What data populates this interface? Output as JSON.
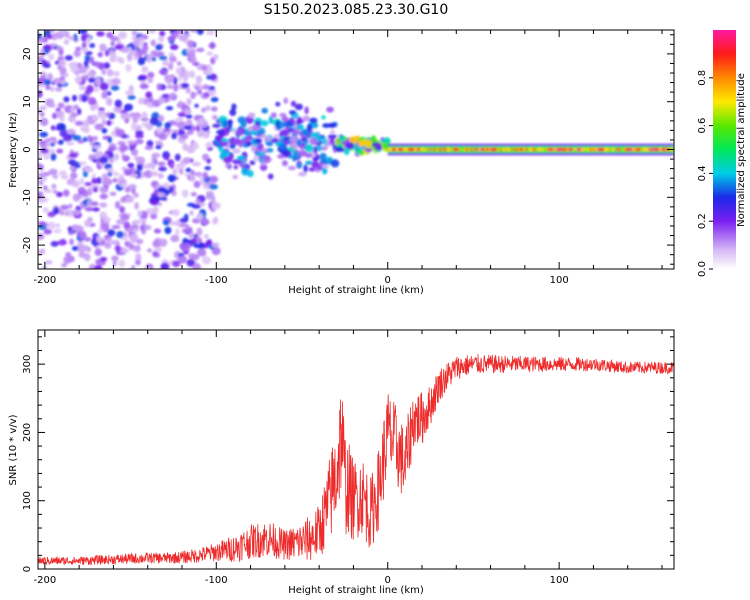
{
  "title": "S150.2023.085.23.30.G10",
  "chart_data": [
    {
      "type": "heatmap",
      "xlabel": "Height of straight line (km)",
      "ylabel": "Frequency (Hz)",
      "xlim": [
        -204,
        167
      ],
      "ylim": [
        -25,
        25
      ],
      "x_ticks": [
        -200,
        -100,
        0,
        100
      ],
      "x_tick_labels": [
        "-200",
        "-100",
        "0",
        "100"
      ],
      "y_ticks": [
        -20,
        -10,
        0,
        10,
        20
      ],
      "y_tick_labels": [
        "-20",
        "-10",
        "0",
        "10",
        "20"
      ],
      "grid": false,
      "colorbar": {
        "label": "Normalized spectral amplitude",
        "range": [
          0,
          1
        ],
        "ticks": [
          0.0,
          0.2,
          0.4,
          0.6,
          0.8
        ],
        "tick_labels": [
          "0.0",
          "0.2",
          "0.4",
          "0.6",
          "0.8"
        ],
        "colormap": "rainbow-white-to-magenta"
      },
      "segments": [
        {
          "x_range": [
            -204,
            -100
          ],
          "freq_spread_hz": 25,
          "typical_amplitude": 0.2
        },
        {
          "x_range": [
            -100,
            -30
          ],
          "freq_center_hz": 2,
          "freq_spread_hz": 10,
          "typical_amplitude": 0.25
        },
        {
          "x_range": [
            -30,
            0
          ],
          "freq_center_hz": 1,
          "freq_spread_hz": 2,
          "typical_amplitude": 0.45
        },
        {
          "x_range": [
            0,
            167
          ],
          "freq_center_hz": 0,
          "freq_spread_hz": 0.8,
          "typical_amplitude": 0.95
        }
      ]
    },
    {
      "type": "line",
      "xlabel": "Height of straight line (km)",
      "ylabel": "SNR (10 * v/v)",
      "xlim": [
        -204,
        167
      ],
      "ylim": [
        0,
        350
      ],
      "x_ticks": [
        -200,
        -100,
        0,
        100
      ],
      "x_tick_labels": [
        "-200",
        "-100",
        "0",
        "100"
      ],
      "y_ticks": [
        0,
        100,
        200,
        300
      ],
      "y_tick_labels": [
        "0",
        "100",
        "200",
        "300"
      ],
      "grid": false,
      "series": [
        {
          "color": "#ee2a2a",
          "x": [
            -204,
            -190,
            -180,
            -170,
            -160,
            -150,
            -140,
            -130,
            -120,
            -110,
            -100,
            -90,
            -80,
            -70,
            -60,
            -50,
            -45,
            -40,
            -35,
            -30,
            -27,
            -25,
            -20,
            -15,
            -10,
            -5,
            0,
            5,
            10,
            15,
            20,
            25,
            30,
            40,
            50,
            60,
            80,
            100,
            120,
            140,
            167
          ],
          "values": [
            12,
            12,
            12,
            13,
            14,
            15,
            16,
            16,
            17,
            20,
            25,
            30,
            40,
            45,
            35,
            40,
            45,
            55,
            90,
            140,
            200,
            130,
            100,
            110,
            80,
            120,
            200,
            180,
            150,
            220,
            220,
            240,
            270,
            295,
            300,
            300,
            300,
            300,
            300,
            295,
            295
          ],
          "noise_amplitude": [
            6,
            6,
            6,
            7,
            7,
            8,
            8,
            8,
            9,
            11,
            14,
            20,
            25,
            28,
            22,
            30,
            35,
            40,
            60,
            80,
            90,
            80,
            60,
            60,
            55,
            60,
            65,
            60,
            55,
            45,
            40,
            30,
            25,
            18,
            15,
            14,
            12,
            11,
            10,
            9,
            9
          ]
        }
      ]
    }
  ]
}
